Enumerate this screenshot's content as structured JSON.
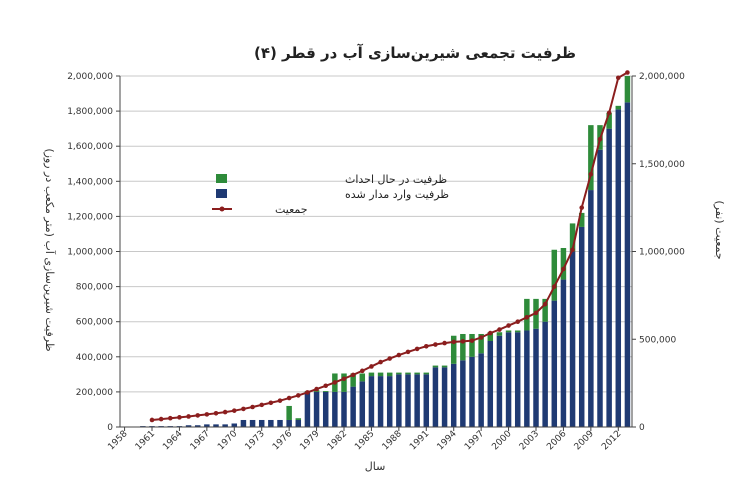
{
  "chart_data": {
    "type": "bar",
    "title": "ظرفیت تجمعی شیرین‌سازی آب در قطر (۴)",
    "xlabel": "سال",
    "ylabel": "ظرفیت شیرین‌سازی آب (متر مکعب در روز)",
    "y2label": "جمعیت (نفر)",
    "ylim": [
      0,
      2000000
    ],
    "y2lim": [
      0,
      2000000
    ],
    "yticks": [
      "0",
      "200,000",
      "400,000",
      "600,000",
      "800,000",
      "1,000,000",
      "1,200,000",
      "1,400,000",
      "1,600,000",
      "1,800,000",
      "2,000,000"
    ],
    "y2ticks": [
      "0",
      "500,000",
      "1,000,000",
      "1,500,000",
      "2,000,000"
    ],
    "xticks": [
      "1958",
      "1961",
      "1964",
      "1967",
      "1970",
      "1973",
      "1976",
      "1979",
      "1982",
      "1985",
      "1988",
      "1991",
      "1994",
      "1997",
      "2000",
      "2003",
      "2006",
      "2009",
      "2012"
    ],
    "grid": true,
    "legend_position": "top-left",
    "categories": [
      1958,
      1959,
      1960,
      1961,
      1962,
      1963,
      1964,
      1965,
      1966,
      1967,
      1968,
      1969,
      1970,
      1971,
      1972,
      1973,
      1974,
      1975,
      1976,
      1977,
      1978,
      1979,
      1980,
      1981,
      1982,
      1983,
      1984,
      1985,
      1986,
      1987,
      1988,
      1989,
      1990,
      1991,
      1992,
      1993,
      1994,
      1995,
      1996,
      1997,
      1998,
      1999,
      2000,
      2001,
      2002,
      2003,
      2004,
      2005,
      2006,
      2007,
      2008,
      2009,
      2010,
      2011,
      2012,
      2013
    ],
    "series": [
      {
        "name": "ظرفیت وارد مدار شده",
        "color": "#1f3a73",
        "values": [
          0,
          0,
          5000,
          5000,
          5000,
          5000,
          5000,
          10000,
          10000,
          15000,
          15000,
          15000,
          20000,
          40000,
          40000,
          40000,
          40000,
          40000,
          40000,
          40000,
          200000,
          200000,
          200000,
          200000,
          200000,
          230000,
          260000,
          290000,
          290000,
          290000,
          300000,
          300000,
          300000,
          300000,
          340000,
          340000,
          360000,
          380000,
          400000,
          420000,
          490000,
          520000,
          540000,
          540000,
          550000,
          560000,
          600000,
          720000,
          840000,
          1000000,
          1140000,
          1350000,
          1580000,
          1700000,
          1810000,
          1850000
        ]
      },
      {
        "name": "ظرفیت در حال احداث",
        "color": "#2e8b3a",
        "values": [
          0,
          0,
          0,
          0,
          0,
          0,
          0,
          0,
          0,
          0,
          0,
          0,
          0,
          0,
          0,
          0,
          0,
          0,
          80000,
          10000,
          5000,
          10000,
          5000,
          105000,
          105000,
          75000,
          45000,
          20000,
          20000,
          20000,
          10000,
          10000,
          10000,
          10000,
          10000,
          10000,
          160000,
          150000,
          130000,
          110000,
          50000,
          20000,
          10000,
          10000,
          180000,
          170000,
          130000,
          290000,
          180000,
          160000,
          80000,
          370000,
          140000,
          90000,
          20000,
          150000
        ]
      }
    ],
    "line_series": {
      "name": "جمعیت",
      "color": "#8b1e1e",
      "x": [
        1961,
        1962,
        1963,
        1964,
        1965,
        1966,
        1967,
        1968,
        1969,
        1970,
        1971,
        1972,
        1973,
        1974,
        1975,
        1976,
        1977,
        1978,
        1979,
        1980,
        1981,
        1982,
        1983,
        1984,
        1985,
        1986,
        1987,
        1988,
        1989,
        1990,
        1991,
        1992,
        1993,
        1994,
        1995,
        1996,
        1997,
        1998,
        1999,
        2000,
        2001,
        2002,
        2003,
        2004,
        2005,
        2006,
        2007,
        2008,
        2009,
        2010,
        2011,
        2012,
        2013
      ],
      "values": [
        40000,
        45000,
        50000,
        55000,
        60000,
        66000,
        72000,
        78000,
        85000,
        93000,
        103000,
        114000,
        126000,
        138000,
        150000,
        165000,
        180000,
        197000,
        216000,
        235000,
        254000,
        275000,
        297000,
        320000,
        345000,
        370000,
        390000,
        410000,
        428000,
        445000,
        460000,
        470000,
        478000,
        485000,
        488000,
        492000,
        510000,
        535000,
        555000,
        578000,
        600000,
        625000,
        650000,
        700000,
        800000,
        900000,
        1010000,
        1250000,
        1440000,
        1640000,
        1790000,
        1990000,
        2020000
      ]
    }
  }
}
